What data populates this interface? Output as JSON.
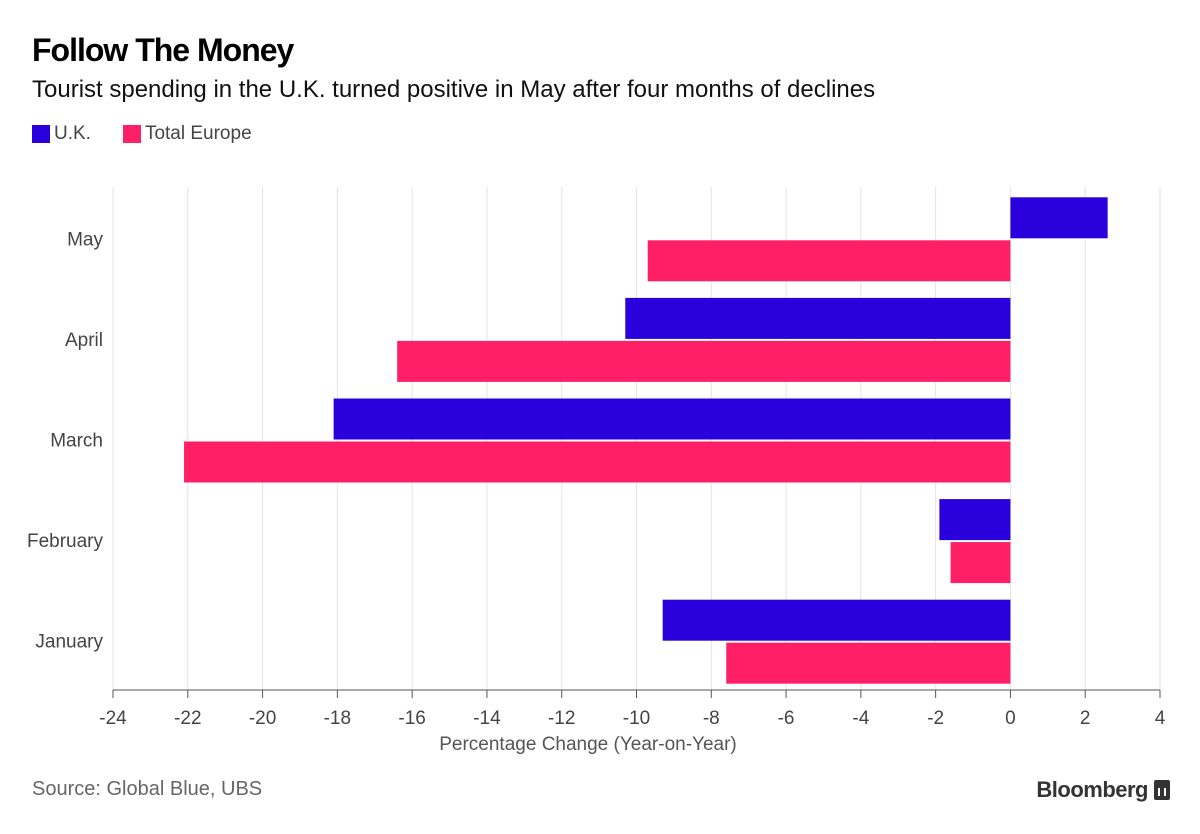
{
  "header": {
    "title": "Follow The Money",
    "subtitle": "Tourist spending in the U.K. turned positive in May after four months of declines"
  },
  "footer": {
    "source": "Source: Global Blue, UBS",
    "brand": "Bloomberg"
  },
  "chart_data": {
    "type": "bar",
    "orientation": "horizontal",
    "title": "Follow The Money",
    "subtitle": "Tourist spending in the U.K. turned positive in May after four months of declines",
    "categories": [
      "May",
      "April",
      "March",
      "February",
      "January"
    ],
    "series": [
      {
        "name": "U.K.",
        "color": "#2a00dc",
        "values": [
          2.6,
          -10.3,
          -18.1,
          -1.9,
          -9.3
        ]
      },
      {
        "name": "Total Europe",
        "color": "#ff1f66",
        "values": [
          -9.7,
          -16.4,
          -22.1,
          -1.6,
          -7.6
        ]
      }
    ],
    "xlabel": "Percentage Change (Year-on-Year)",
    "ylabel": "",
    "xlim": [
      -24,
      4
    ],
    "xticks": [
      -24,
      -22,
      -20,
      -18,
      -16,
      -14,
      -12,
      -10,
      -8,
      -6,
      -4,
      -2,
      0,
      2,
      4
    ],
    "grid": true,
    "legend_position": "top-left"
  }
}
